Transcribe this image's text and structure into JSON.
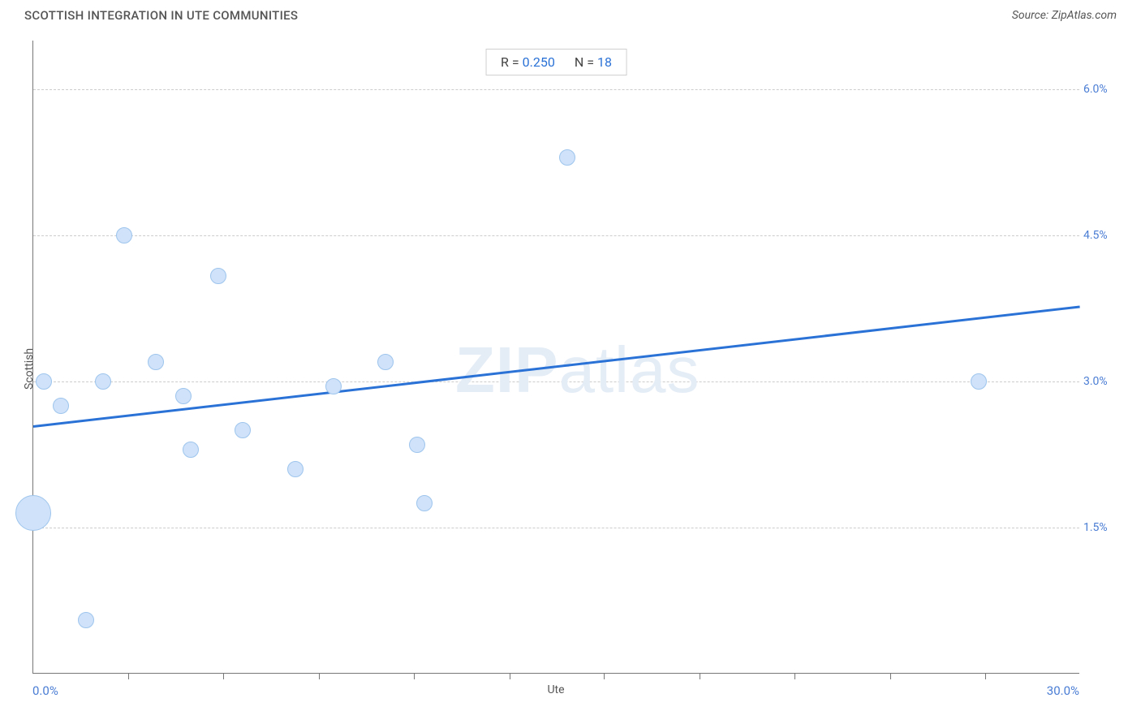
{
  "header": {
    "title": "SCOTTISH INTEGRATION IN UTE COMMUNITIES",
    "source": "Source: ZipAtlas.com"
  },
  "chart": {
    "type": "scatter",
    "xlabel": "Ute",
    "ylabel": "Scottish",
    "xlim": [
      0.0,
      30.0
    ],
    "ylim": [
      0.0,
      6.5
    ],
    "x_min_label": "0.0%",
    "x_max_label": "30.0%",
    "y_ticks": [
      1.5,
      3.0,
      4.5,
      6.0
    ],
    "y_tick_labels": [
      "1.5%",
      "3.0%",
      "4.5%",
      "6.0%"
    ],
    "x_tick_minor": [
      2.73,
      5.45,
      8.18,
      10.91,
      13.64,
      16.36,
      19.09,
      21.82,
      24.55,
      27.27
    ],
    "grid_color": "#cccccc",
    "point_fill": "#cfe2f9",
    "point_stroke": "#9ec5ed",
    "point_base_size": 20,
    "trend_color": "#2b72d6",
    "trend_start": [
      0.0,
      2.55
    ],
    "trend_end": [
      30.0,
      3.78
    ],
    "stats": {
      "r_label": "R =",
      "r_value": "0.250",
      "n_label": "N =",
      "n_value": "18"
    },
    "points": [
      {
        "x": 0.3,
        "y": 3.0,
        "size": 20
      },
      {
        "x": 0.8,
        "y": 2.75,
        "size": 20
      },
      {
        "x": 0.0,
        "y": 1.65,
        "size": 44
      },
      {
        "x": 1.5,
        "y": 0.55,
        "size": 20
      },
      {
        "x": 2.0,
        "y": 3.0,
        "size": 20
      },
      {
        "x": 2.6,
        "y": 4.5,
        "size": 20
      },
      {
        "x": 3.5,
        "y": 3.2,
        "size": 20
      },
      {
        "x": 4.3,
        "y": 2.85,
        "size": 20
      },
      {
        "x": 4.5,
        "y": 2.3,
        "size": 20
      },
      {
        "x": 5.3,
        "y": 4.08,
        "size": 20
      },
      {
        "x": 6.0,
        "y": 2.5,
        "size": 20
      },
      {
        "x": 7.5,
        "y": 2.1,
        "size": 20
      },
      {
        "x": 8.6,
        "y": 2.95,
        "size": 20
      },
      {
        "x": 10.1,
        "y": 3.2,
        "size": 20
      },
      {
        "x": 11.0,
        "y": 2.35,
        "size": 20
      },
      {
        "x": 11.2,
        "y": 1.75,
        "size": 20
      },
      {
        "x": 15.3,
        "y": 5.3,
        "size": 20
      },
      {
        "x": 27.1,
        "y": 3.0,
        "size": 20
      }
    ],
    "watermark": {
      "prefix": "ZIP",
      "suffix": "atlas"
    }
  }
}
